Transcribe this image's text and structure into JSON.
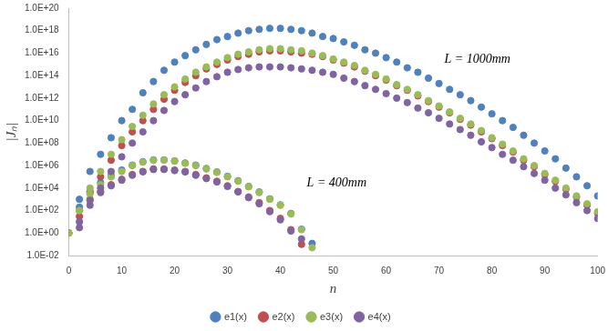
{
  "chart_data": {
    "type": "scatter",
    "x_label": "n",
    "y_label": "|Jₙ|",
    "log": "y",
    "grid": false,
    "legend": "bottom",
    "xlim": [
      0,
      100
    ],
    "xticks": [
      0,
      10,
      20,
      30,
      40,
      50,
      60,
      70,
      80,
      90,
      100
    ],
    "ylim": [
      0.01,
      1e+20
    ],
    "yticks": [
      {
        "value": 0.01,
        "label": "1.0E-02"
      },
      {
        "value": 1,
        "label": "1.0E+00"
      },
      {
        "value": 100,
        "label": "1.0E+02"
      },
      {
        "value": 10000,
        "label": "1.0E+04"
      },
      {
        "value": 1000000,
        "label": "1.0E+06"
      },
      {
        "value": 100000000,
        "label": "1.0E+08"
      },
      {
        "value": 10000000000,
        "label": "1.0E+10"
      },
      {
        "value": 1000000000000,
        "label": "1.0E+12"
      },
      {
        "value": 100000000000000,
        "label": "1.0E+14"
      },
      {
        "value": 1e+16,
        "label": "1.0E+16"
      },
      {
        "value": 1e+18,
        "label": "1.0E+18"
      },
      {
        "value": 1e+20,
        "label": "1.0E+20"
      }
    ],
    "annotations": [
      {
        "text": "L = 1000mm",
        "x": 71,
        "y": 3000000000000000.0
      },
      {
        "text": "L = 400mm",
        "x": 45,
        "y": 30000.0
      }
    ],
    "series": [
      {
        "name": "e1(x)",
        "color": "#4f81bd",
        "marker": "circle",
        "x": [
          2,
          4,
          6,
          8,
          10,
          12,
          14,
          16,
          18,
          20,
          22,
          24,
          26,
          28,
          30,
          32,
          34,
          36,
          38,
          40,
          42,
          44,
          46,
          48,
          50,
          52,
          54,
          56,
          58,
          60,
          62,
          64,
          66,
          68,
          70,
          72,
          74,
          76,
          78,
          80,
          82,
          84,
          86,
          88,
          90,
          92,
          94,
          96,
          98,
          100,
          0,
          2,
          4,
          6,
          8,
          10,
          12,
          14,
          16,
          18,
          20,
          22,
          24,
          26,
          28,
          30,
          32,
          34,
          36,
          38,
          40,
          42,
          44,
          46
        ],
        "values": [
          1000.0,
          300000.0,
          10000000.0,
          300000000.0,
          10000000000.0,
          100000000000.0,
          3000000000000.0,
          30000000000000.0,
          300000000000000.0,
          1600000000000000.0,
          6000000000000000.0,
          2e+16,
          6e+16,
          1.6e+17,
          3e+17,
          6e+17,
          1e+18,
          1.3e+18,
          1.6e+18,
          1.6e+18,
          1.3e+18,
          1e+18,
          6e+17,
          3e+17,
          2e+17,
          1e+17,
          5e+16,
          2e+16,
          1e+16,
          4000000000000000.0,
          1600000000000000.0,
          500000000000000.0,
          200000000000000.0,
          60000000000000.0,
          20000000000000.0,
          6000000000000.0,
          2000000000000.0,
          600000000000.0,
          160000000000.0,
          40000000000.0,
          10000000000.0,
          2500000000.0,
          500000000.0,
          100000000.0,
          20000000.0,
          4000000.0,
          600000.0,
          100000.0,
          16000.0,
          2000.0,
          1.0,
          200.0,
          4000.0,
          30000.0,
          130000.0,
          400000.0,
          1100000.0,
          2200000.0,
          3200000.0,
          3200000.0,
          2600000.0,
          1700000.0,
          1100000.0,
          550000.0,
          270000.0,
          110000.0,
          45000.0,
          14000.0,
          4500.0,
          1100.0,
          320.0,
          55.0,
          2.2,
          0.12
        ]
      },
      {
        "name": "e2(x)",
        "color": "#c0504d",
        "marker": "circle",
        "x": [
          2,
          4,
          6,
          8,
          10,
          12,
          14,
          16,
          18,
          20,
          22,
          24,
          26,
          28,
          30,
          32,
          34,
          36,
          38,
          40,
          42,
          44,
          46,
          48,
          50,
          52,
          54,
          56,
          58,
          60,
          62,
          64,
          66,
          68,
          70,
          72,
          74,
          76,
          78,
          80,
          82,
          84,
          86,
          88,
          90,
          92,
          94,
          96,
          98,
          100,
          0,
          2,
          4,
          6,
          8,
          10,
          12,
          14,
          16,
          18,
          20,
          22,
          24,
          26,
          28,
          30,
          32,
          34,
          36,
          38,
          40,
          42,
          44
        ],
        "values": [
          30.0,
          5000.0,
          100000.0,
          3000000.0,
          60000000.0,
          1000000000.0,
          10000000000.0,
          100000000000.0,
          800000000000.0,
          5000000000000.0,
          25000000000000.0,
          100000000000000.0,
          400000000000000.0,
          1000000000000000.0,
          2500000000000000.0,
          5000000000000000.0,
          8000000000000000.0,
          1.3e+16,
          1.6e+16,
          1.6e+16,
          1.3e+16,
          1e+16,
          8000000000000000.0,
          5000000000000000.0,
          2500000000000000.0,
          1300000000000000.0,
          600000000000000.0,
          250000000000000.0,
          100000000000000.0,
          40000000000000.0,
          13000000000000.0,
          5000000000000.0,
          1600000000000.0,
          500000000000.0,
          160000000000.0,
          50000000000.0,
          13000000000.0,
          4000000000.0,
          1000000000.0,
          250000000.0,
          60000000.0,
          16000000.0,
          3000000.0,
          800000.0,
          160000.0,
          40000.0,
          8000.0,
          1600.0,
          300.0,
          60.0,
          1.0,
          100.0,
          1000.0,
          5000.0,
          20000.0,
          60000.0,
          160000.0,
          300000.0,
          500000.0,
          500000.0,
          400000.0,
          300000.0,
          160000.0,
          80000.0,
          40000.0,
          16000.0,
          5000.0,
          1600.0,
          500.0,
          100.0,
          20.0,
          2.0,
          0.1
        ]
      },
      {
        "name": "e3(x)",
        "color": "#9bbb59",
        "marker": "circle",
        "x": [
          2,
          4,
          6,
          8,
          10,
          12,
          14,
          16,
          18,
          20,
          22,
          24,
          26,
          28,
          30,
          32,
          34,
          36,
          38,
          40,
          42,
          44,
          46,
          48,
          50,
          52,
          54,
          56,
          58,
          60,
          62,
          64,
          66,
          68,
          70,
          72,
          74,
          76,
          78,
          80,
          82,
          84,
          86,
          88,
          90,
          92,
          94,
          96,
          98,
          100,
          0,
          2,
          4,
          6,
          8,
          10,
          12,
          14,
          16,
          18,
          20,
          22,
          24,
          26,
          28,
          30,
          32,
          34,
          36,
          38,
          40,
          42,
          44,
          46
        ],
        "values": [
          100.0,
          10000.0,
          300000.0,
          10000000.0,
          200000000.0,
          3000000000.0,
          30000000000.0,
          300000000000.0,
          2000000000000.0,
          10000000000000.0,
          50000000000000.0,
          200000000000000.0,
          600000000000000.0,
          1600000000000000.0,
          4000000000000000.0,
          8000000000000000.0,
          1.3e+16,
          2e+16,
          2.5e+16,
          2.5e+16,
          2e+16,
          1.6e+16,
          1e+16,
          6000000000000000.0,
          3000000000000000.0,
          1600000000000000.0,
          800000000000000.0,
          300000000000000.0,
          130000000000000.0,
          50000000000000.0,
          16000000000000.0,
          6000000000000.0,
          2000000000000.0,
          600000000000.0,
          200000000000.0,
          60000000000.0,
          16000000000.0,
          5000000000.0,
          1300000000.0,
          300000000.0,
          80000000.0,
          20000000.0,
          4000000.0,
          1000000.0,
          200000.0,
          50000.0,
          10000.0,
          2000.0,
          400.0,
          80.0,
          1.0,
          100.0,
          3000.0,
          20000.0,
          100000.0,
          300000.0,
          1000000.0,
          2000000.0,
          3000000.0,
          3000000.0,
          2500000.0,
          1600000.0,
          1000000.0,
          500000.0,
          250000.0,
          100000.0,
          40000.0,
          13000.0,
          4000.0,
          1000.0,
          300.0,
          50.0,
          2.0,
          0.05
        ]
      },
      {
        "name": "e4(x)",
        "color": "#8064a2",
        "marker": "circle",
        "x": [
          2,
          4,
          6,
          8,
          10,
          12,
          14,
          16,
          18,
          20,
          22,
          24,
          26,
          28,
          30,
          32,
          34,
          36,
          38,
          40,
          42,
          44,
          46,
          48,
          50,
          52,
          54,
          56,
          58,
          60,
          62,
          64,
          66,
          68,
          70,
          72,
          74,
          76,
          78,
          80,
          82,
          84,
          86,
          88,
          90,
          92,
          94,
          96,
          98,
          100,
          2,
          4,
          6,
          8,
          10,
          12,
          14,
          16,
          18,
          20,
          22,
          24,
          26,
          28,
          30,
          32,
          34,
          36,
          38,
          40,
          42,
          44
        ],
        "values": [
          3.0,
          300.0,
          10000.0,
          300000.0,
          6000000.0,
          100000000.0,
          1000000000.0,
          10000000000.0,
          80000000000.0,
          500000000000.0,
          2000000000000.0,
          8000000000000.0,
          30000000000000.0,
          80000000000000.0,
          200000000000000.0,
          350000000000000.0,
          500000000000000.0,
          600000000000000.0,
          600000000000000.0,
          600000000000000.0,
          500000000000000.0,
          400000000000000.0,
          300000000000000.0,
          200000000000000.0,
          130000000000000.0,
          60000000000000.0,
          30000000000000.0,
          13000000000000.0,
          6000000000000.0,
          2500000000000.0,
          1000000000000.0,
          400000000000.0,
          130000000000.0,
          50000000000.0,
          16000000000.0,
          5000000000.0,
          1600000000.0,
          500000000.0,
          130000000.0,
          40000000.0,
          10000000.0,
          3000000.0,
          800000.0,
          200000.0,
          50000.0,
          10000.0,
          2500.0,
          500.0,
          100.0,
          20.0,
          10.0,
          800.0,
          4000.0,
          16000.0,
          50000.0,
          140000.0,
          280000.0,
          450000.0,
          450000.0,
          360000.0,
          270000.0,
          140000.0,
          70000.0,
          35000.0,
          14000.0,
          4500.0,
          1400.0,
          400.0,
          80.0,
          15.0,
          1.5,
          0.3
        ]
      }
    ]
  }
}
